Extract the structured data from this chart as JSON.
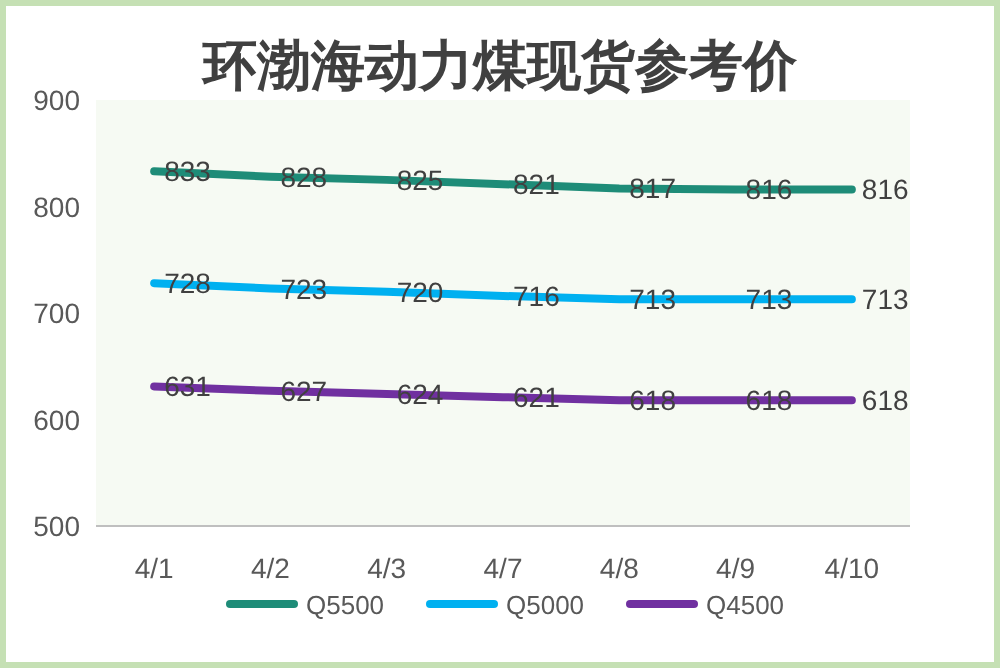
{
  "chart_data": {
    "type": "line",
    "title": "环渤海动力煤现货参考价",
    "categories": [
      "4/1",
      "4/2",
      "4/3",
      "4/7",
      "4/8",
      "4/9",
      "4/10"
    ],
    "series": [
      {
        "name": "Q5500",
        "color": "#1e8c78",
        "values": [
          833,
          828,
          825,
          821,
          817,
          816,
          816
        ]
      },
      {
        "name": "Q5000",
        "color": "#00b0f0",
        "values": [
          728,
          723,
          720,
          716,
          713,
          713,
          713
        ]
      },
      {
        "name": "Q4500",
        "color": "#7030a0",
        "values": [
          631,
          627,
          624,
          621,
          618,
          618,
          618
        ]
      }
    ],
    "ylim": [
      500,
      900
    ],
    "yticks": [
      500,
      600,
      700,
      800,
      900
    ],
    "grid": false,
    "legend": "bottom",
    "data_labels": true,
    "marker": "none",
    "line_style": "solid"
  }
}
